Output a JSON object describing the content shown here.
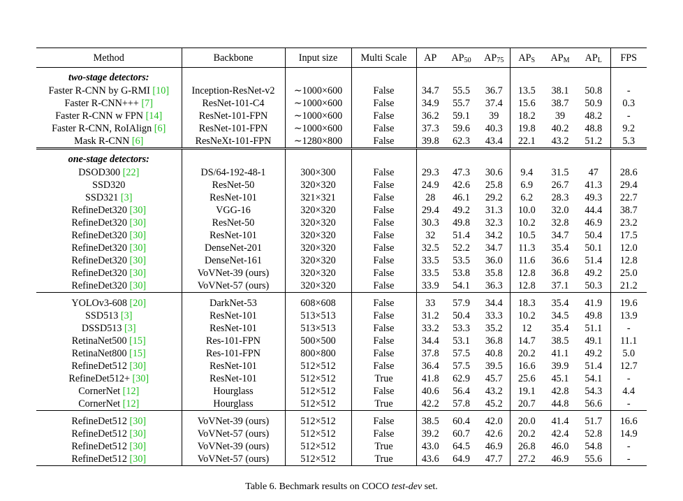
{
  "table": {
    "headers": {
      "method": "Method",
      "backbone": "Backbone",
      "input_size": "Input size",
      "multi_scale": "Multi Scale",
      "ap": "AP",
      "ap50_main": "AP",
      "ap50_sub": "50",
      "ap75_main": "AP",
      "ap75_sub": "75",
      "aps_main": "AP",
      "aps_sub": "S",
      "apm_main": "AP",
      "apm_sub": "M",
      "apl_main": "AP",
      "apl_sub": "L",
      "fps": "FPS"
    },
    "groups": [
      {
        "label": "two-stage detectors:",
        "rows": [
          {
            "method": "Faster R-CNN by G-RMI ",
            "ref": "[10]",
            "backbone": "Inception-ResNet-v2",
            "input": "∼1000×600",
            "ms": "False",
            "ap": "34.7",
            "ap50": "55.5",
            "ap75": "36.7",
            "aps": "13.5",
            "apm": "38.1",
            "apl": "50.8",
            "fps": "-"
          },
          {
            "method": "Faster R-CNN+++ ",
            "ref": "[7]",
            "backbone": "ResNet-101-C4",
            "input": "∼1000×600",
            "ms": "False",
            "ap": "34.9",
            "ap50": "55.7",
            "ap75": "37.4",
            "aps": "15.6",
            "apm": "38.7",
            "apl": "50.9",
            "fps": "0.3"
          },
          {
            "method": "Faster R-CNN w FPN ",
            "ref": "[14]",
            "backbone": "ResNet-101-FPN",
            "input": "∼1000×600",
            "ms": "False",
            "ap": "36.2",
            "ap50": "59.1",
            "ap75": "39",
            "aps": "18.2",
            "apm": "39",
            "apl": "48.2",
            "fps": "-"
          },
          {
            "method": "Faster R-CNN, RoIAlign ",
            "ref": "[6]",
            "backbone": "ResNet-101-FPN",
            "input": "∼1000×600",
            "ms": "False",
            "ap": "37.3",
            "ap50": "59.6",
            "ap75": "40.3",
            "aps": "19.8",
            "apm": "40.2",
            "apl": "48.8",
            "fps": "9.2"
          },
          {
            "method": "Mask R-CNN ",
            "ref": "[6]",
            "backbone": "ResNeXt-101-FPN",
            "input": "∼1280×800",
            "ms": "False",
            "ap": "39.8",
            "ap50": "62.3",
            "ap75": "43.4",
            "aps": "22.1",
            "apm": "43.2",
            "apl": "51.2",
            "fps": "5.3"
          }
        ]
      },
      {
        "label": "one-stage detectors:",
        "rows": [
          {
            "method": "DSOD300 ",
            "ref": "[22]",
            "backbone": "DS/64-192-48-1",
            "input": "300×300",
            "ms": "False",
            "ap": "29.3",
            "ap50": "47.3",
            "ap75": "30.6",
            "aps": "9.4",
            "apm": "31.5",
            "apl": "47",
            "fps": "28.6"
          },
          {
            "method": "SSD320",
            "ref": "",
            "backbone": "ResNet-50",
            "input": "320×320",
            "ms": "False",
            "ap": "24.9",
            "ap50": "42.6",
            "ap75": "25.8",
            "aps": "6.9",
            "apm": "26.7",
            "apl": "41.3",
            "fps": "29.4"
          },
          {
            "method": "SSD321 ",
            "ref": "[3]",
            "backbone": "ResNet-101",
            "input": "321×321",
            "ms": "False",
            "ap": "28",
            "ap50": "46.1",
            "ap75": "29.2",
            "aps": "6.2",
            "apm": "28.3",
            "apl": "49.3",
            "fps": "22.7"
          },
          {
            "method": "RefineDet320 ",
            "ref": "[30]",
            "backbone": "VGG-16",
            "input": "320×320",
            "ms": "False",
            "ap": "29.4",
            "ap50": "49.2",
            "ap75": "31.3",
            "aps": "10.0",
            "apm": "32.0",
            "apl": "44.4",
            "fps": "38.7"
          },
          {
            "method": "RefineDet320 ",
            "ref": "[30]",
            "backbone": "ResNet-50",
            "input": "320×320",
            "ms": "False",
            "ap": "30.3",
            "ap50": "49.8",
            "ap75": "32.3",
            "aps": "10.2",
            "apm": "32.8",
            "apl": "46.9",
            "fps": "23.2"
          },
          {
            "method": "RefineDet320 ",
            "ref": "[30]",
            "backbone": "ResNet-101",
            "input": "320×320",
            "ms": "False",
            "ap": "32",
            "ap50": "51.4",
            "ap75": "34.2",
            "aps": "10.5",
            "apm": "34.7",
            "apl": "50.4",
            "fps": "17.5"
          },
          {
            "method": "RefineDet320 ",
            "ref": "[30]",
            "backbone": "DenseNet-201",
            "input": "320×320",
            "ms": "False",
            "ap": "32.5",
            "ap50": "52.2",
            "ap75": "34.7",
            "aps": "11.3",
            "apm": "35.4",
            "apl": "50.1",
            "fps": "12.0"
          },
          {
            "method": "RefineDet320 ",
            "ref": "[30]",
            "backbone": "DenseNet-161",
            "input": "320×320",
            "ms": "False",
            "ap": "33.5",
            "ap50": "53.5",
            "ap75": "36.0",
            "aps": "11.6",
            "apm": "36.6",
            "apl": "51.4",
            "fps": "12.8"
          },
          {
            "method": "RefineDet320 ",
            "ref": "[30]",
            "backbone": "VoVNet-39 (ours)",
            "backbone_bold": true,
            "input": "320×320",
            "ms": "False",
            "ap": "33.5",
            "ap50": "53.8",
            "ap75": "35.8",
            "aps": "12.8",
            "apm": "36.8",
            "apl": "49.2",
            "fps": "25.0"
          },
          {
            "method": "RefineDet320 ",
            "ref": "[30]",
            "backbone": "VoVNet-57 (ours)",
            "backbone_bold": true,
            "input": "320×320",
            "ms": "False",
            "ap": "33.9",
            "ap50": "54.1",
            "ap75": "36.3",
            "aps": "12.8",
            "apm": "37.1",
            "apl": "50.3",
            "fps": "21.2"
          }
        ]
      },
      {
        "label": "",
        "rows": [
          {
            "method": "YOLOv3-608 ",
            "ref": "[20]",
            "backbone": "DarkNet-53",
            "input": "608×608",
            "ms": "False",
            "ap": "33",
            "ap50": "57.9",
            "ap75": "34.4",
            "aps": "18.3",
            "apm": "35.4",
            "apl": "41.9",
            "fps": "19.6"
          },
          {
            "method": "SSD513 ",
            "ref": "[3]",
            "backbone": "ResNet-101",
            "input": "513×513",
            "ms": "False",
            "ap": "31.2",
            "ap50": "50.4",
            "ap75": "33.3",
            "aps": "10.2",
            "apm": "34.5",
            "apl": "49.8",
            "fps": "13.9"
          },
          {
            "method": "DSSD513 ",
            "ref": "[3]",
            "backbone": "ResNet-101",
            "input": "513×513",
            "ms": "False",
            "ap": "33.2",
            "ap50": "53.3",
            "ap75": "35.2",
            "aps": "12",
            "apm": "35.4",
            "apl": "51.1",
            "fps": "-"
          },
          {
            "method": "RetinaNet500 ",
            "ref": "[15]",
            "backbone": "Res-101-FPN",
            "input": "500×500",
            "ms": "False",
            "ap": "34.4",
            "ap50": "53.1",
            "ap75": "36.8",
            "aps": "14.7",
            "apm": "38.5",
            "apl": "49.1",
            "fps": "11.1"
          },
          {
            "method": "RetinaNet800 ",
            "ref": "[15]",
            "backbone": "Res-101-FPN",
            "input": "800×800",
            "ms": "False",
            "ap": "37.8",
            "ap50": "57.5",
            "ap75": "40.8",
            "aps": "20.2",
            "apm": "41.1",
            "apl": "49.2",
            "fps": "5.0"
          },
          {
            "method": "RefineDet512 ",
            "ref": "[30]",
            "backbone": "ResNet-101",
            "input": "512×512",
            "ms": "False",
            "ap": "36.4",
            "ap50": "57.5",
            "ap75": "39.5",
            "aps": "16.6",
            "apm": "39.9",
            "apl": "51.4",
            "fps": "12.7"
          },
          {
            "method": "RefineDet512+ ",
            "ref": "[30]",
            "backbone": "ResNet-101",
            "input": "512×512",
            "ms": "True",
            "ap": "41.8",
            "ap50": "62.9",
            "ap75": "45.7",
            "aps": "25.6",
            "apm": "45.1",
            "apl": "54.1",
            "fps": "-"
          },
          {
            "method": "CornerNet ",
            "ref": "[12]",
            "backbone": "Hourglass",
            "input": "512×512",
            "ms": "False",
            "ap": "40.6",
            "ap50": "56.4",
            "ap75": "43.2",
            "aps": "19.1",
            "apm": "42.8",
            "apl": "54.3",
            "fps": "4.4"
          },
          {
            "method": "CornerNet ",
            "ref": "[12]",
            "backbone": "Hourglass",
            "input": "512×512",
            "ms": "True",
            "ap": "42.2",
            "ap50": "57.8",
            "ap75": "45.2",
            "aps": "20.7",
            "apm": "44.8",
            "apl": "56.6",
            "apl_bold": true,
            "fps": "-"
          }
        ]
      },
      {
        "label": "",
        "rows": [
          {
            "method": "RefineDet512 ",
            "ref": "[30]",
            "backbone": "VoVNet-39 (ours)",
            "backbone_bold": true,
            "input": "512×512",
            "ms": "False",
            "ap": "38.5",
            "ap50": "60.4",
            "ap75": "42.0",
            "aps": "20.0",
            "apm": "41.4",
            "apl": "51.7",
            "fps": "16.6"
          },
          {
            "method": "RefineDet512 ",
            "ref": "[30]",
            "backbone": "VoVNet-57 (ours)",
            "backbone_bold": true,
            "input": "512×512",
            "ms": "False",
            "ap": "39.2",
            "ap50": "60.7",
            "ap75": "42.6",
            "aps": "20.2",
            "apm": "42.4",
            "apl": "52.8",
            "fps": "14.9"
          },
          {
            "method": "RefineDet512 ",
            "ref": "[30]",
            "backbone": "VoVNet-39 (ours)",
            "backbone_bold": true,
            "input": "512×512",
            "ms": "True",
            "ap": "43.0",
            "ap50": "64.5",
            "ap75": "46.9",
            "aps": "26.8",
            "apm": "46.0",
            "apl": "54.8",
            "fps": "-"
          },
          {
            "method": "RefineDet512 ",
            "ref": "[30]",
            "backbone": "VoVNet-57 (ours)",
            "backbone_bold": true,
            "input": "512×512",
            "ms": "True",
            "ap": "43.6",
            "ap_bold": true,
            "ap50": "64.9",
            "ap50_bold": true,
            "ap75": "47.7",
            "ap75_bold": true,
            "aps": "27.2",
            "aps_bold": true,
            "apm": "46.9",
            "apm_bold": true,
            "apl": "55.6",
            "fps": "-"
          }
        ]
      }
    ]
  },
  "caption": {
    "prefix": "Table 6. Bechmark results on COCO ",
    "italic": "test-dev",
    "suffix": " set."
  }
}
